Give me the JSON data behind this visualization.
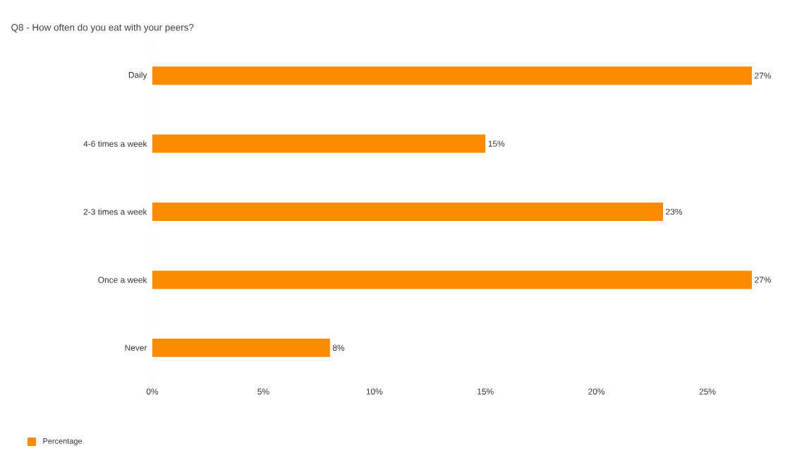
{
  "chart_data": {
    "type": "bar",
    "orientation": "horizontal",
    "title": "Q8 - How often do you eat with your peers?",
    "categories": [
      "Daily",
      "4-6 times a week",
      "2-3 times a week",
      "Once a week",
      "Never"
    ],
    "series": [
      {
        "name": "Percentage",
        "color": "#fb8c00",
        "values": [
          27,
          15,
          23,
          27,
          8
        ],
        "value_labels": [
          "27%",
          "15%",
          "23%",
          "27%",
          "8%"
        ]
      }
    ],
    "xlim": [
      0,
      27
    ],
    "xticks": [
      {
        "value": 0,
        "label": "0%"
      },
      {
        "value": 5,
        "label": "5%"
      },
      {
        "value": 10,
        "label": "10%"
      },
      {
        "value": 15,
        "label": "15%"
      },
      {
        "value": 20,
        "label": "20%"
      },
      {
        "value": 25,
        "label": "25%"
      }
    ],
    "grid": false,
    "legend": "bottom left"
  }
}
